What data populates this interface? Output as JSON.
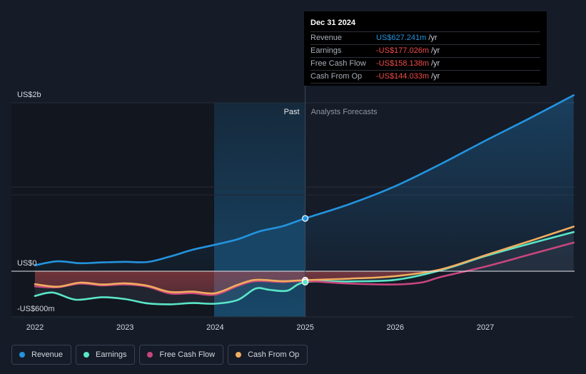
{
  "colors": {
    "revenue": "#2394df",
    "earnings": "#5ae6c8",
    "free_cash_flow": "#c8467e",
    "cash_from_op": "#f0ad5f"
  },
  "tooltip": {
    "date": "Dec 31 2024",
    "rows": [
      {
        "name": "Revenue",
        "value": "US$627.241m",
        "unit": "/yr",
        "color": "#2394df"
      },
      {
        "name": "Earnings",
        "value": "-US$177.026m",
        "unit": "/yr",
        "color": "#f24b4b"
      },
      {
        "name": "Free Cash Flow",
        "value": "-US$158.138m",
        "unit": "/yr",
        "color": "#f24b4b"
      },
      {
        "name": "Cash From Op",
        "value": "-US$144.033m",
        "unit": "/yr",
        "color": "#f24b4b"
      }
    ]
  },
  "legend": [
    {
      "label": "Revenue",
      "color": "#2394df"
    },
    {
      "label": "Earnings",
      "color": "#5ae6c8"
    },
    {
      "label": "Free Cash Flow",
      "color": "#c8467e"
    },
    {
      "label": "Cash From Op",
      "color": "#f0ad5f"
    }
  ],
  "chart_data": {
    "type": "line",
    "title": "",
    "xlabel": "",
    "ylabel": "",
    "y_unit": "US$ m",
    "xlim": [
      2021.88,
      2027.98
    ],
    "ylim": [
      -600,
      2000
    ],
    "y_tick_labels": [
      {
        "value": 2000,
        "label": "US$2b"
      },
      {
        "value": 0,
        "label": "US$0"
      },
      {
        "value": -600,
        "label": "-US$600m"
      }
    ],
    "x_ticks": [
      {
        "value": 2022,
        "label": "2022"
      },
      {
        "value": 2023,
        "label": "2023"
      },
      {
        "value": 2024,
        "label": "2024"
      },
      {
        "value": 2025,
        "label": "2025"
      },
      {
        "value": 2026,
        "label": "2026"
      },
      {
        "value": 2027,
        "label": "2027"
      }
    ],
    "past_label": "Past",
    "forecast_label": "Analysts Forecasts",
    "past_shade_start": 2024.0,
    "divider_x": 2025.0,
    "highlight_x": 2025.0,
    "series": [
      {
        "name": "Revenue",
        "key": "revenue",
        "points": [
          [
            2022.0,
            70
          ],
          [
            2022.25,
            118
          ],
          [
            2022.5,
            95
          ],
          [
            2022.75,
            105
          ],
          [
            2023.0,
            112
          ],
          [
            2023.25,
            110
          ],
          [
            2023.5,
            175
          ],
          [
            2023.75,
            255
          ],
          [
            2024.0,
            315
          ],
          [
            2024.25,
            380
          ],
          [
            2024.5,
            475
          ],
          [
            2024.75,
            535
          ],
          [
            2025.0,
            627
          ],
          [
            2025.5,
            800
          ],
          [
            2026.0,
            1010
          ],
          [
            2026.5,
            1270
          ],
          [
            2027.0,
            1550
          ],
          [
            2027.5,
            1820
          ],
          [
            2027.98,
            2090
          ]
        ]
      },
      {
        "name": "Earnings",
        "key": "earnings",
        "points": [
          [
            2022.0,
            -400
          ],
          [
            2022.2,
            -345
          ],
          [
            2022.45,
            -460
          ],
          [
            2022.75,
            -420
          ],
          [
            2023.0,
            -450
          ],
          [
            2023.25,
            -520
          ],
          [
            2023.5,
            -535
          ],
          [
            2023.75,
            -515
          ],
          [
            2024.0,
            -525
          ],
          [
            2024.25,
            -465
          ],
          [
            2024.45,
            -280
          ],
          [
            2024.6,
            -300
          ],
          [
            2024.8,
            -315
          ],
          [
            2025.0,
            -177
          ],
          [
            2025.5,
            -165
          ],
          [
            2026.0,
            -140
          ],
          [
            2026.5,
            10
          ],
          [
            2027.0,
            180
          ],
          [
            2027.5,
            330
          ],
          [
            2027.98,
            465
          ]
        ]
      },
      {
        "name": "Free Cash Flow",
        "key": "free_cash_flow",
        "points": [
          [
            2022.0,
            -245
          ],
          [
            2022.25,
            -260
          ],
          [
            2022.5,
            -200
          ],
          [
            2022.75,
            -230
          ],
          [
            2023.0,
            -215
          ],
          [
            2023.25,
            -250
          ],
          [
            2023.5,
            -360
          ],
          [
            2023.75,
            -355
          ],
          [
            2024.0,
            -380
          ],
          [
            2024.25,
            -240
          ],
          [
            2024.45,
            -160
          ],
          [
            2024.75,
            -175
          ],
          [
            2025.0,
            -158
          ],
          [
            2025.5,
            -200
          ],
          [
            2026.0,
            -215
          ],
          [
            2026.3,
            -180
          ],
          [
            2026.5,
            -95
          ],
          [
            2027.0,
            55
          ],
          [
            2027.5,
            200
          ],
          [
            2027.98,
            340
          ]
        ]
      },
      {
        "name": "Cash From Op",
        "key": "cash_from_op",
        "points": [
          [
            2022.0,
            -210
          ],
          [
            2022.25,
            -250
          ],
          [
            2022.5,
            -185
          ],
          [
            2022.75,
            -215
          ],
          [
            2023.0,
            -195
          ],
          [
            2023.25,
            -235
          ],
          [
            2023.5,
            -335
          ],
          [
            2023.75,
            -330
          ],
          [
            2024.0,
            -355
          ],
          [
            2024.25,
            -220
          ],
          [
            2024.45,
            -140
          ],
          [
            2024.75,
            -160
          ],
          [
            2025.0,
            -144
          ],
          [
            2025.5,
            -120
          ],
          [
            2026.0,
            -80
          ],
          [
            2026.5,
            20
          ],
          [
            2027.0,
            190
          ],
          [
            2027.5,
            360
          ],
          [
            2027.98,
            530
          ]
        ]
      }
    ]
  }
}
